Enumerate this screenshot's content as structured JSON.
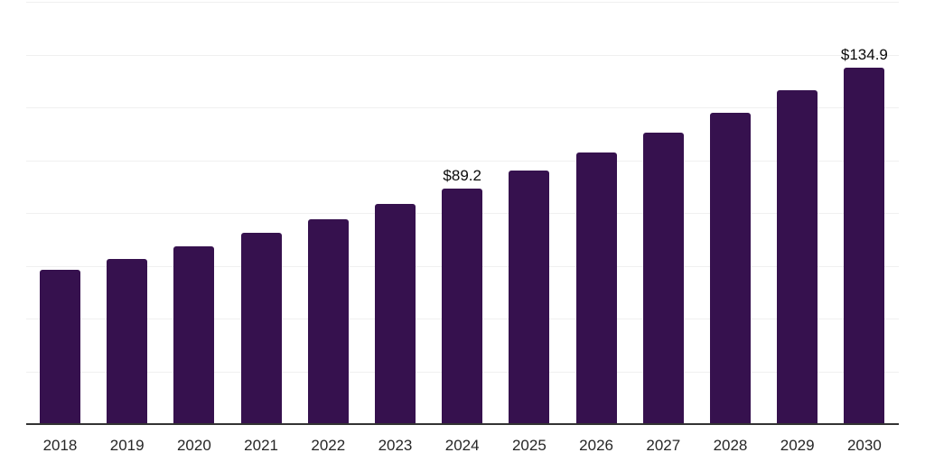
{
  "chart_data": {
    "type": "bar",
    "title": "",
    "xlabel": "",
    "ylabel": "",
    "categories": [
      "2018",
      "2019",
      "2020",
      "2021",
      "2022",
      "2023",
      "2024",
      "2025",
      "2026",
      "2027",
      "2028",
      "2029",
      "2030"
    ],
    "values": [
      58.6,
      62.7,
      67.4,
      72.4,
      77.6,
      83.3,
      89.2,
      96.0,
      102.9,
      110.4,
      118.0,
      126.4,
      134.9
    ],
    "labeled_points": [
      {
        "category": "2024",
        "label": "$89.2"
      },
      {
        "category": "2030",
        "label": "$134.9"
      }
    ],
    "ylim": [
      0,
      160
    ],
    "gridline_interval": 20,
    "grid": "horizontal",
    "legend": "none",
    "y_tick_labels_visible": false,
    "colors": {
      "bar": "#36114E",
      "axis_line": "#333333",
      "gridline": "#F0F0F0",
      "tick_label": "#262626",
      "value_label": "#0A0A0A",
      "background": "#FFFFFF"
    }
  }
}
